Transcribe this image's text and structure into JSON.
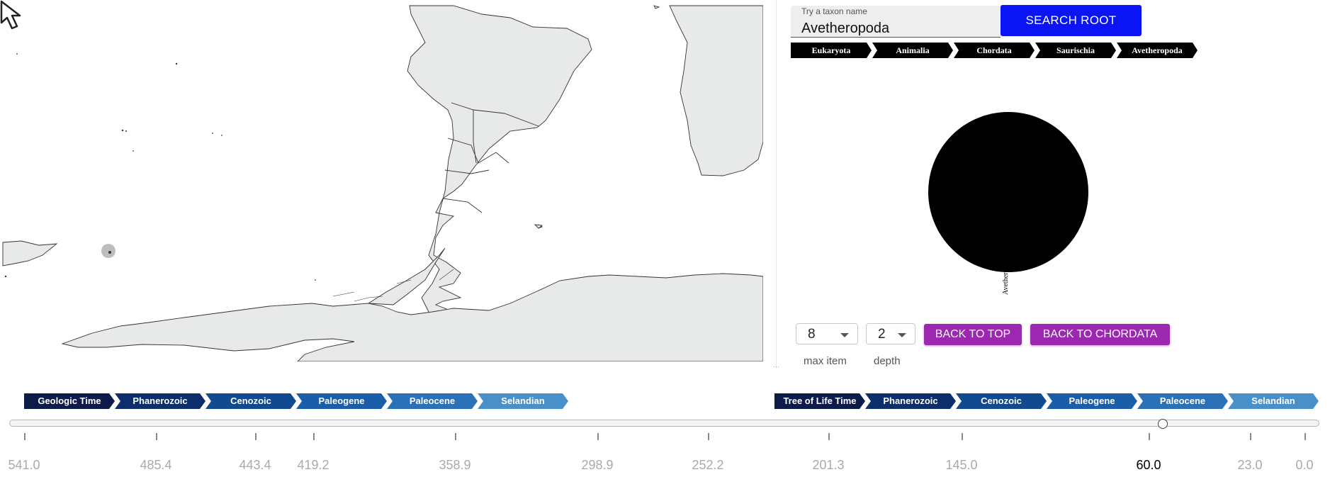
{
  "search": {
    "label": "Try a taxon name",
    "value": "Avetheropoda",
    "button_label": "SEARCH ROOT"
  },
  "breadcrumb": [
    "Eukaryota",
    "Animalia",
    "Chordata",
    "Saurischia",
    "Avetheropoda"
  ],
  "tree": {
    "node_label": "Avetheropoda"
  },
  "controls": {
    "max_item_value": "8",
    "max_item_label": "max item",
    "depth_value": "2",
    "depth_label": "depth",
    "back_to_top_label": "BACK TO TOP",
    "back_to_chordata_label": "BACK TO CHORDATA"
  },
  "geologic_time": {
    "items": [
      {
        "label": "Geologic Time",
        "color": "#0d1b4a"
      },
      {
        "label": "Phanerozoic",
        "color": "#0c2f6b"
      },
      {
        "label": "Cenozoic",
        "color": "#124a8f"
      },
      {
        "label": "Paleogene",
        "color": "#1a5da8"
      },
      {
        "label": "Paleocene",
        "color": "#2a71b8"
      },
      {
        "label": "Selandian",
        "color": "#4a90c8"
      }
    ]
  },
  "tree_of_life_time": {
    "items": [
      {
        "label": "Tree of Life Time",
        "color": "#0d1b4a"
      },
      {
        "label": "Phanerozoic",
        "color": "#0c2f6b"
      },
      {
        "label": "Cenozoic",
        "color": "#124a8f"
      },
      {
        "label": "Paleogene",
        "color": "#1a5da8"
      },
      {
        "label": "Paleocene",
        "color": "#2a71b8"
      },
      {
        "label": "Selandian",
        "color": "#4a90c8"
      }
    ]
  },
  "timeline": {
    "ticks": [
      "541.0",
      "485.4",
      "443.4",
      "419.2",
      "358.9",
      "298.9",
      "252.2",
      "201.3",
      "145.0",
      "60.0",
      "23.0",
      "0.0"
    ],
    "selected": "60.0"
  },
  "colors": {
    "search_button": "#0a14f5",
    "purple_button": "#9c27b0",
    "land": "#e8e9e9"
  }
}
